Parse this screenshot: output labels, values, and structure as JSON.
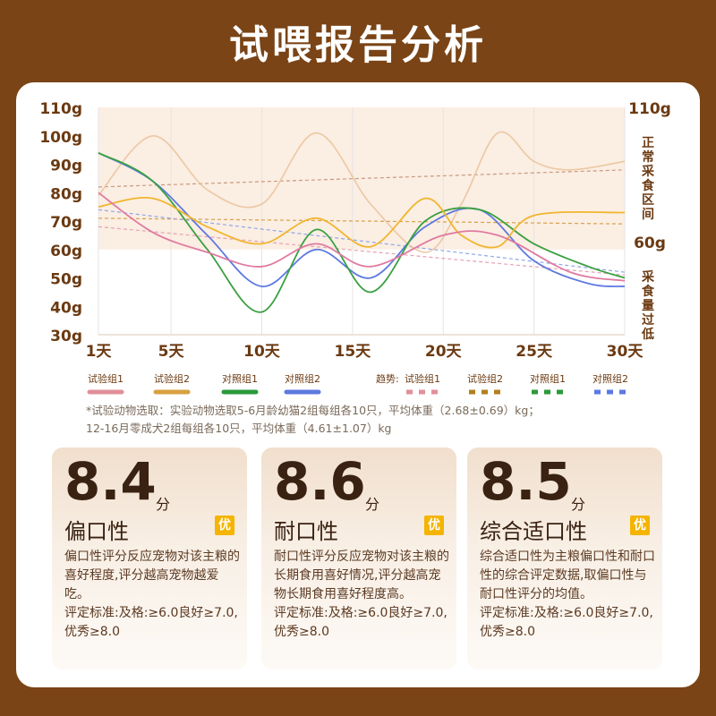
{
  "title": "试喂报告分析",
  "chart_data": {
    "type": "line",
    "y_left_ticks": [
      "110g",
      "100g",
      "90g",
      "80g",
      "70g",
      "60g",
      "50g",
      "40g",
      "30g"
    ],
    "ylim": [
      30,
      110
    ],
    "x_ticks": [
      {
        "label": "1天",
        "value": 1
      },
      {
        "label": "5天",
        "value": 5
      },
      {
        "label": "10天",
        "value": 10
      },
      {
        "label": "15天",
        "value": 15
      },
      {
        "label": "20天",
        "value": 20
      },
      {
        "label": "25天",
        "value": 25
      },
      {
        "label": "30天",
        "value": 30
      }
    ],
    "xlim": [
      1,
      30
    ],
    "right_labels": {
      "top_value": "110g",
      "normal_zone": "正常采食区间",
      "mid_value": "60g",
      "low_zone": "采食量过低"
    },
    "normal_band": [
      60,
      110
    ],
    "grid": true,
    "series": [
      {
        "name": "试验组1",
        "color": "#e07aa0",
        "points": [
          [
            1,
            80
          ],
          [
            4,
            66
          ],
          [
            7,
            59
          ],
          [
            10,
            54
          ],
          [
            13,
            62
          ],
          [
            16,
            54
          ],
          [
            20,
            65
          ],
          [
            23,
            65
          ],
          [
            27,
            52
          ],
          [
            30,
            49
          ]
        ]
      },
      {
        "name": "试验组2",
        "color": "#f0b62e",
        "points": [
          [
            1,
            75
          ],
          [
            4,
            78
          ],
          [
            7,
            68
          ],
          [
            10,
            62
          ],
          [
            13,
            71
          ],
          [
            16,
            61
          ],
          [
            19,
            78
          ],
          [
            21,
            65
          ],
          [
            23,
            61
          ],
          [
            25,
            72
          ],
          [
            30,
            73
          ]
        ]
      },
      {
        "name": "对照组1",
        "color": "#3aa040",
        "points": [
          [
            1,
            94
          ],
          [
            4,
            84
          ],
          [
            7,
            60
          ],
          [
            10,
            38
          ],
          [
            13,
            67
          ],
          [
            16,
            45
          ],
          [
            19,
            70
          ],
          [
            22,
            74
          ],
          [
            25,
            62
          ],
          [
            28,
            54
          ],
          [
            30,
            50
          ]
        ]
      },
      {
        "name": "对照组2",
        "color": "#5d79e0",
        "points": [
          [
            1,
            94
          ],
          [
            4,
            84
          ],
          [
            7,
            65
          ],
          [
            10,
            47
          ],
          [
            13,
            60
          ],
          [
            16,
            50
          ],
          [
            19,
            68
          ],
          [
            22,
            74
          ],
          [
            25,
            56
          ],
          [
            28,
            48
          ],
          [
            30,
            47
          ]
        ]
      },
      {
        "name": "背景曲线",
        "color": "#e9c196",
        "points": [
          [
            1,
            79
          ],
          [
            4,
            100
          ],
          [
            7,
            81
          ],
          [
            10,
            76
          ],
          [
            13,
            101
          ],
          [
            16,
            76
          ],
          [
            19,
            59
          ],
          [
            21,
            76
          ],
          [
            23,
            101
          ],
          [
            25,
            91
          ],
          [
            27,
            88
          ],
          [
            30,
            91
          ]
        ]
      }
    ],
    "trends": [
      {
        "name": "试验组1",
        "color": "#e6a0b4",
        "from": [
          1,
          68
        ],
        "to": [
          30,
          51
        ]
      },
      {
        "name": "试验组2",
        "color": "#d8a04a",
        "from": [
          1,
          71
        ],
        "to": [
          30,
          69
        ]
      },
      {
        "name": "对照组1",
        "color": "#c89a80",
        "from": [
          1,
          82
        ],
        "to": [
          30,
          88
        ]
      },
      {
        "name": "对照组2",
        "color": "#8fa8e8",
        "from": [
          1,
          74
        ],
        "to": [
          30,
          52
        ]
      }
    ],
    "legend": {
      "solid": [
        {
          "label": "试验组1",
          "color": "#e0909a"
        },
        {
          "label": "试验组2",
          "color": "#d8a040"
        },
        {
          "label": "对照组1",
          "color": "#2a9a3a"
        },
        {
          "label": "对照组2",
          "color": "#5d79e0"
        }
      ],
      "trend_prefix": "趋势:",
      "dashed": [
        {
          "label": "试验组1",
          "color": "#e0909a"
        },
        {
          "label": "试验组2",
          "color": "#b08020"
        },
        {
          "label": "对照组1",
          "color": "#2a9a3a"
        },
        {
          "label": "对照组2",
          "color": "#5d79e0"
        }
      ]
    }
  },
  "note": {
    "line1": "*试验动物选取：实验动物选取5-6月龄幼猫2组每组各10只，平均体重（2.68±0.69）kg；",
    "line2": "12-16月零成犬2组每组各10只，平均体重（4.61±1.07）kg"
  },
  "cards": [
    {
      "score": "8.4",
      "unit": "分",
      "name": "偏口性",
      "badge": "优",
      "desc": "偏口性评分反应宠物对该主粮的喜好程度,评分越高宠物越爱吃。",
      "standard": "评定标准:及格:≥6.0良好≥7.0,优秀≥8.0"
    },
    {
      "score": "8.6",
      "unit": "分",
      "name": "耐口性",
      "badge": "优",
      "desc": "耐口性评分反应宠物对该主粮的长期食用喜好情况,评分越高宠物长期食用喜好程度高。",
      "standard": "评定标准:及格:≥6.0良好≥7.0,优秀≥8.0"
    },
    {
      "score": "8.5",
      "unit": "分",
      "name": "综合适口性",
      "badge": "优",
      "desc": "综合适口性为主粮偏口性和耐口性的综合评定数据,取偏口性与耐口性评分的均值。",
      "standard": "评定标准:及格:≥6.0良好≥7.0,优秀≥8.0"
    }
  ]
}
